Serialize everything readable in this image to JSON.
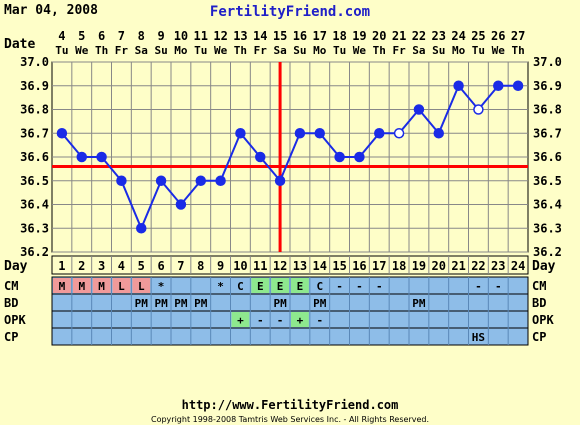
{
  "header": {
    "date_label": "Mar 04, 2008",
    "site_title": "FertilityFriend.com"
  },
  "footer": {
    "url": "http://www.FertilityFriend.com",
    "copyright": "Copyright 1998-2008 Tamtris Web Services Inc. - All Rights Reserved."
  },
  "row_labels": {
    "date": "Date",
    "day": "Day",
    "cm": "CM",
    "bd": "BD",
    "opk": "OPK",
    "cp": "CP"
  },
  "chart_data": {
    "type": "line",
    "dates": [
      "4",
      "5",
      "6",
      "7",
      "8",
      "9",
      "10",
      "11",
      "12",
      "13",
      "14",
      "15",
      "16",
      "17",
      "18",
      "19",
      "20",
      "21",
      "22",
      "23",
      "24",
      "25",
      "26",
      "27"
    ],
    "weekdays": [
      "Tu",
      "We",
      "Th",
      "Fr",
      "Sa",
      "Su",
      "Mo",
      "Tu",
      "We",
      "Th",
      "Fr",
      "Sa",
      "Su",
      "Mo",
      "Tu",
      "We",
      "Th",
      "Fr",
      "Sa",
      "Su",
      "Mo",
      "Tu",
      "We",
      "Th"
    ],
    "cycle_days": [
      "1",
      "2",
      "3",
      "4",
      "5",
      "6",
      "7",
      "8",
      "9",
      "10",
      "11",
      "12",
      "13",
      "14",
      "15",
      "16",
      "17",
      "18",
      "19",
      "20",
      "21",
      "22",
      "23",
      "24"
    ],
    "temperatures": [
      36.7,
      36.6,
      36.6,
      36.5,
      36.3,
      36.5,
      36.4,
      36.5,
      36.5,
      36.7,
      36.6,
      36.5,
      36.7,
      36.7,
      36.6,
      36.6,
      36.7,
      36.7,
      36.8,
      36.7,
      36.9,
      36.8,
      36.9,
      36.9
    ],
    "open_points": [
      17,
      21
    ],
    "y_ticks": [
      "37.0",
      "36.9",
      "36.8",
      "36.7",
      "36.6",
      "36.5",
      "36.4",
      "36.3",
      "36.2"
    ],
    "ylim": [
      36.2,
      37.0
    ],
    "coverline": 36.56,
    "ovulation_index": 11,
    "grid": true,
    "line_color": "#1a2be6",
    "marker_line_color": "#ff0000"
  },
  "observations": {
    "cm": [
      "M",
      "M",
      "M",
      "L",
      "L",
      "*",
      "",
      "",
      "*",
      "C",
      "E",
      "E",
      "E",
      "C",
      "-",
      "-",
      "-",
      "",
      "",
      "",
      "",
      "-",
      "-",
      ""
    ],
    "bd": [
      "",
      "",
      "",
      "",
      "PM",
      "PM",
      "PM",
      "PM",
      "",
      "",
      "",
      "PM",
      "",
      "PM",
      "",
      "",
      "",
      "",
      "PM",
      "",
      "",
      "",
      "",
      ""
    ],
    "opk": [
      "",
      "",
      "",
      "",
      "",
      "",
      "",
      "",
      "",
      "+",
      "-",
      "-",
      "+",
      "-",
      "",
      "",
      "",
      "",
      "",
      "",
      "",
      "",
      "",
      ""
    ],
    "cp": [
      "",
      "",
      "",
      "",
      "",
      "",
      "",
      "",
      "",
      "",
      "",
      "",
      "",
      "",
      "",
      "",
      "",
      "",
      "",
      "",
      "",
      "HS",
      "",
      ""
    ]
  },
  "colors": {
    "background": "#fefec8",
    "row_blue": "#8ebde8",
    "menses_red": "#f09a9a",
    "fertile_green": "#8ee88e",
    "title_blue": "#2020c8"
  }
}
